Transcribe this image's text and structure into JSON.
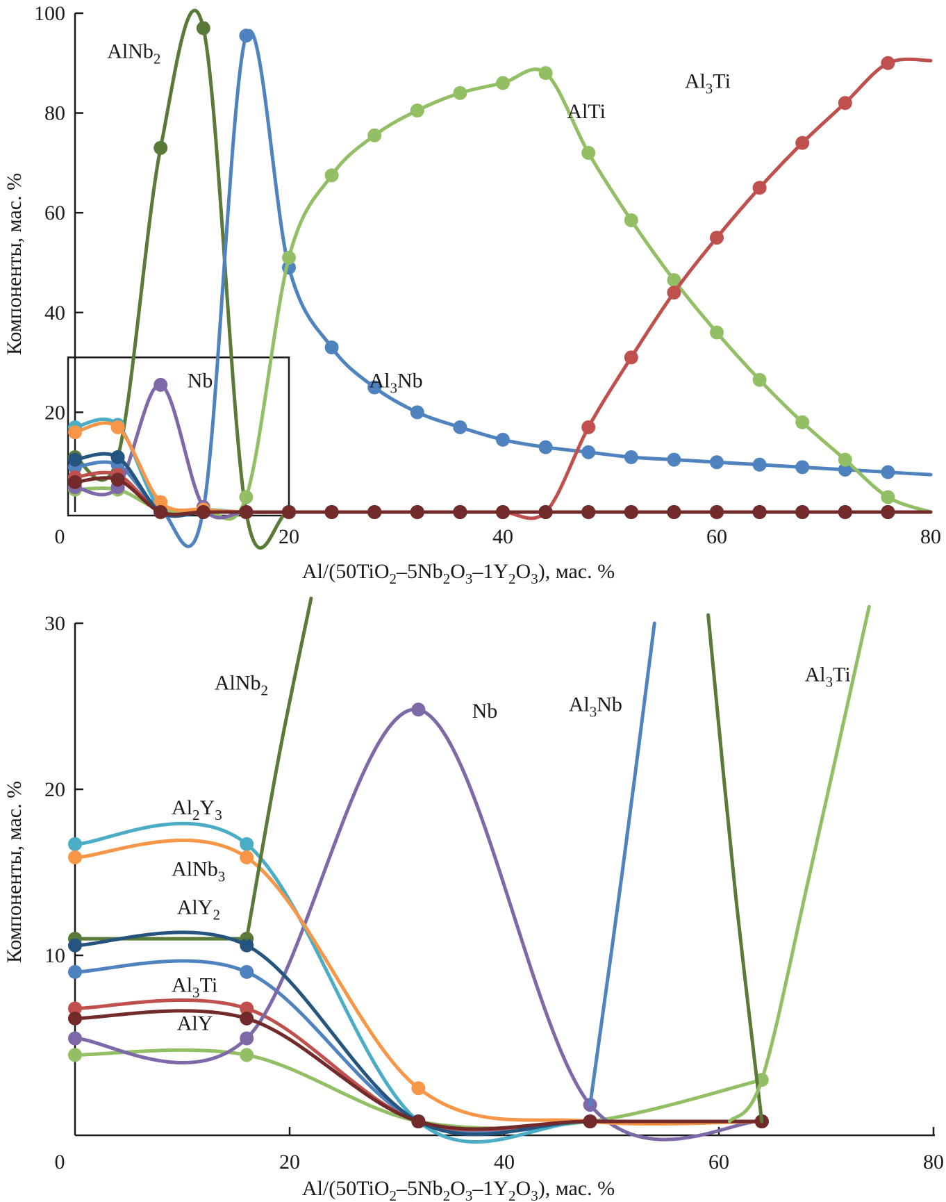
{
  "chart_data": [
    {
      "type": "line",
      "panel": "top",
      "title": "",
      "xlabel": "Al/(50TiO2–5Nb2O3–1Y2O3), мас. %",
      "ylabel": "Компоненты, мас. %",
      "xlim": [
        0,
        80
      ],
      "ylim": [
        0,
        100
      ],
      "xticks": [
        0,
        20,
        40,
        60,
        80
      ],
      "yticks": [
        20,
        40,
        60,
        80,
        100
      ],
      "grid": false,
      "zoom_box": {
        "x": [
          0,
          20
        ],
        "y": [
          0,
          31
        ]
      },
      "x": [
        0,
        4,
        8,
        12,
        16,
        20,
        24,
        28,
        32,
        36,
        40,
        44,
        48,
        52,
        56,
        60,
        64,
        68,
        72,
        76
      ],
      "series": [
        {
          "name": "AlNb2",
          "color": "#5a7a37",
          "values": [
            11,
            11,
            73,
            97,
            0,
            0,
            0,
            0,
            0,
            0,
            0,
            0,
            0,
            0,
            0,
            0,
            0,
            0,
            0,
            0
          ]
        },
        {
          "name": "Al3Nb",
          "color": "#4f83c0",
          "values": [
            9,
            9.5,
            0.5,
            0.5,
            95.5,
            49,
            33,
            25,
            20,
            17,
            14.5,
            13,
            12,
            11,
            10.5,
            10,
            9.5,
            9,
            8.5,
            8
          ],
          "end": 7.5
        },
        {
          "name": "AlTi",
          "color": "#93bf64",
          "values": [
            4.5,
            4.5,
            0.5,
            0.5,
            3,
            51,
            67.5,
            75.5,
            80.5,
            84,
            86,
            88,
            72,
            58.5,
            46.5,
            36,
            26.5,
            18,
            10.5,
            3
          ],
          "end": 0
        },
        {
          "name": "Al3Ti",
          "color": "#c0504d",
          "values": [
            7,
            7.5,
            0,
            0,
            0,
            0,
            0,
            0,
            0,
            0,
            0,
            0,
            17,
            31,
            44,
            55,
            65,
            74,
            82,
            90
          ],
          "end": 90.5
        },
        {
          "name": "Nb",
          "color": "#7e69a8",
          "values": [
            5,
            5,
            25.5,
            1,
            0,
            0,
            0,
            0,
            0,
            0,
            0,
            0,
            0,
            0,
            0,
            0,
            0,
            0,
            0,
            0
          ]
        },
        {
          "name": "Al2Y3",
          "color": "#4bacc6",
          "values": [
            17,
            17.5,
            0.5,
            0.5,
            0,
            0,
            0,
            0,
            0,
            0,
            0,
            0,
            0,
            0,
            0,
            0,
            0,
            0,
            0,
            0
          ]
        },
        {
          "name": "AlNb3",
          "color": "#f79646",
          "values": [
            16,
            17,
            2,
            0.5,
            0,
            0,
            0,
            0,
            0,
            0,
            0,
            0,
            0,
            0,
            0,
            0,
            0,
            0,
            0,
            0
          ]
        },
        {
          "name": "AlY2",
          "color": "#25557e",
          "values": [
            10.5,
            11,
            0,
            0,
            0,
            0,
            0,
            0,
            0,
            0,
            0,
            0,
            0,
            0,
            0,
            0,
            0,
            0,
            0,
            0
          ]
        },
        {
          "name": "AlY",
          "color": "#722a2a",
          "values": [
            6,
            6.5,
            0,
            0,
            0,
            0,
            0,
            0,
            0,
            0,
            0,
            0,
            0,
            0,
            0,
            0,
            0,
            0,
            0,
            0
          ],
          "end": 0
        }
      ],
      "annotations": [
        {
          "text": "AlNb2",
          "x": 3,
          "y": 91
        },
        {
          "text": "Nb",
          "x": 10.5,
          "y": 25
        },
        {
          "text": "AlTi",
          "x": 46,
          "y": 79
        },
        {
          "text": "Al3Ti",
          "x": 57,
          "y": 85
        },
        {
          "text": "Al3Nb",
          "x": 27.5,
          "y": 25
        }
      ]
    },
    {
      "type": "line",
      "panel": "bottom",
      "title": "",
      "xlabel": "Al/(50TiO2–5Nb2O3–1Y2O3), мас. %",
      "ylabel": "Компоненты, мас. %",
      "xlim": [
        0,
        80
      ],
      "ylim": [
        0,
        30
      ],
      "xticks": [
        0,
        20,
        40,
        60,
        80
      ],
      "yticks": [
        10,
        20,
        30
      ],
      "grid": false,
      "x": [
        0,
        16,
        32,
        48,
        64
      ],
      "series": [
        {
          "name": "AlNb2",
          "color": "#5a7a37",
          "values": [
            11,
            11,
            null,
            null,
            0
          ],
          "note": "rises above 30 after x≈16, re-enters near x≈59"
        },
        {
          "name": "Al3Nb",
          "color": "#4f83c0",
          "values": [
            9,
            9,
            0,
            0,
            null
          ],
          "note": "rises above 30 after x≈48"
        },
        {
          "name": "AlTi",
          "color": "#93bf64",
          "values": [
            4,
            4,
            0,
            0,
            2.5
          ],
          "note": "rises above 30 near x≈74"
        },
        {
          "name": "Al3Ti",
          "color": "#c0504d",
          "values": [
            6.8,
            6.8,
            0,
            0,
            0
          ]
        },
        {
          "name": "Nb",
          "color": "#7e69a8",
          "values": [
            5,
            5,
            24.8,
            1,
            0
          ]
        },
        {
          "name": "Al2Y3",
          "color": "#4bacc6",
          "values": [
            16.7,
            16.7,
            0,
            0,
            0
          ]
        },
        {
          "name": "AlNb3",
          "color": "#f79646",
          "values": [
            15.9,
            15.9,
            2,
            0,
            0
          ]
        },
        {
          "name": "AlY2",
          "color": "#25557e",
          "values": [
            10.6,
            10.6,
            0,
            0,
            0
          ]
        },
        {
          "name": "AlY",
          "color": "#722a2a",
          "values": [
            6.2,
            6.2,
            0,
            0,
            0
          ]
        }
      ],
      "annotations": [
        {
          "text": "AlNb2",
          "x": 13,
          "y": 26
        },
        {
          "text": "Al2Y3",
          "x": 9,
          "y": 18.5
        },
        {
          "text": "AlNb3",
          "x": 9,
          "y": 14.8
        },
        {
          "text": "AlY2",
          "x": 9.5,
          "y": 12.5
        },
        {
          "text": "Al3Ti",
          "x": 9,
          "y": 7.8
        },
        {
          "text": "AlY",
          "x": 9.5,
          "y": 5.5
        },
        {
          "text": "Nb",
          "x": 37,
          "y": 24.3
        },
        {
          "text": "Al3Nb",
          "x": 46,
          "y": 24.7
        },
        {
          "text": "Al3Ti",
          "x": 68,
          "y": 26.5
        }
      ]
    }
  ],
  "labels": {
    "top_ylabel": "Компоненты, мас. %",
    "bottom_ylabel": "Компоненты, мас. %",
    "xlabel_parts": [
      {
        "t": "Al/(50TiO",
        "s": false
      },
      {
        "t": "2",
        "s": true
      },
      {
        "t": "–5Nb",
        "s": false
      },
      {
        "t": "2",
        "s": true
      },
      {
        "t": "O",
        "s": false
      },
      {
        "t": "3",
        "s": true
      },
      {
        "t": "–1Y",
        "s": false
      },
      {
        "t": "2",
        "s": true
      },
      {
        "t": "O",
        "s": false
      },
      {
        "t": "3",
        "s": true
      },
      {
        "t": "), мас. %",
        "s": false
      }
    ]
  }
}
